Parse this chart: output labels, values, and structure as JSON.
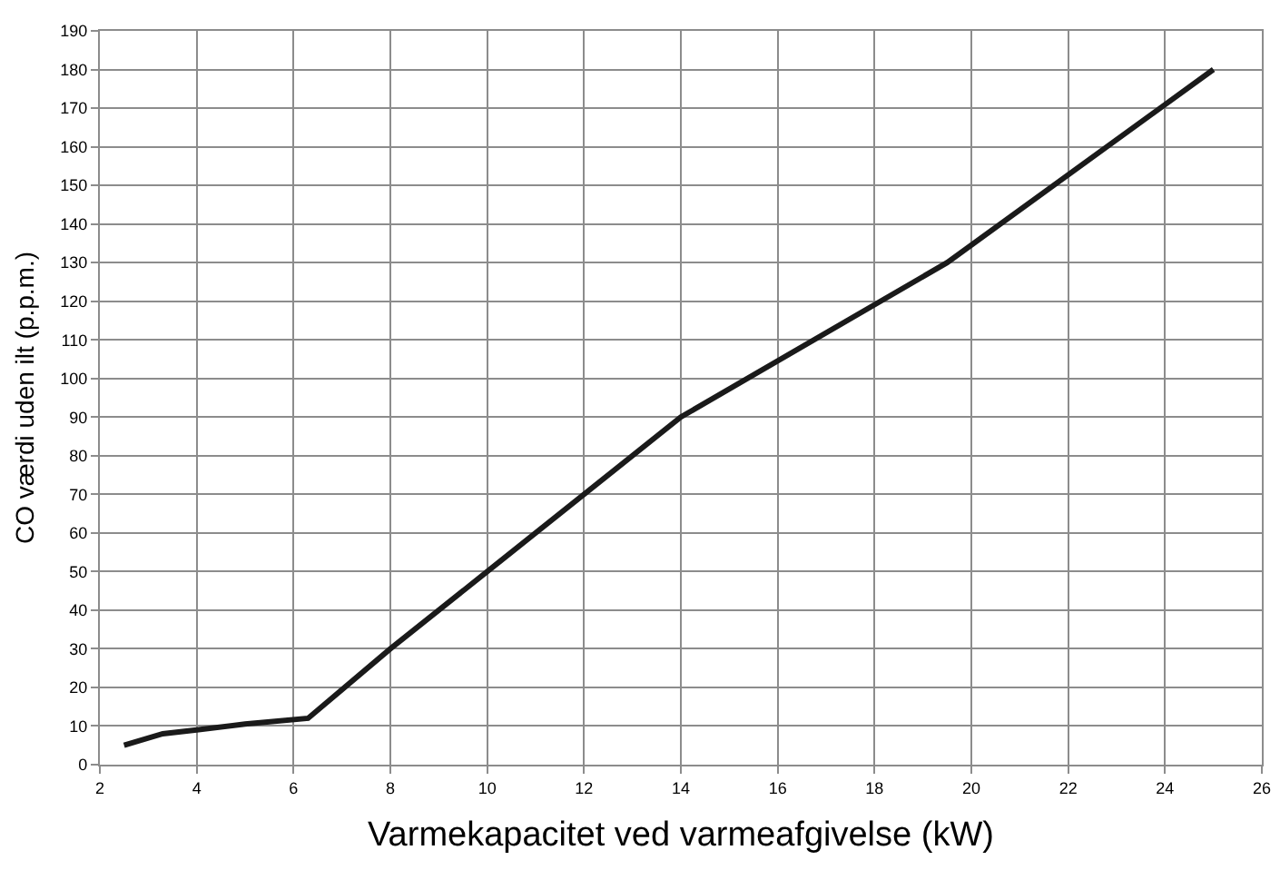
{
  "chart_data": {
    "type": "line",
    "xlabel": "Varmekapacitet ved varmeafgivelse (kW)",
    "ylabel": "CO værdi uden ilt (p.p.m.)",
    "x": [
      2.5,
      3.3,
      4,
      5,
      6.3,
      8,
      10,
      14,
      19.5,
      25
    ],
    "series": [
      {
        "color": "#1a1a1a",
        "values": [
          5,
          8,
          9,
          10.5,
          12,
          30,
          50,
          90,
          130,
          180
        ]
      }
    ],
    "xlim": [
      2,
      26
    ],
    "xticks": [
      2,
      4,
      6,
      8,
      10,
      12,
      14,
      16,
      18,
      20,
      22,
      24,
      26
    ],
    "ylim": [
      0,
      190
    ],
    "yticks": [
      0,
      10,
      20,
      30,
      40,
      50,
      60,
      70,
      80,
      90,
      100,
      110,
      120,
      130,
      140,
      150,
      160,
      170,
      180,
      190
    ],
    "grid": true,
    "marker": "none",
    "line_style": "solid"
  }
}
